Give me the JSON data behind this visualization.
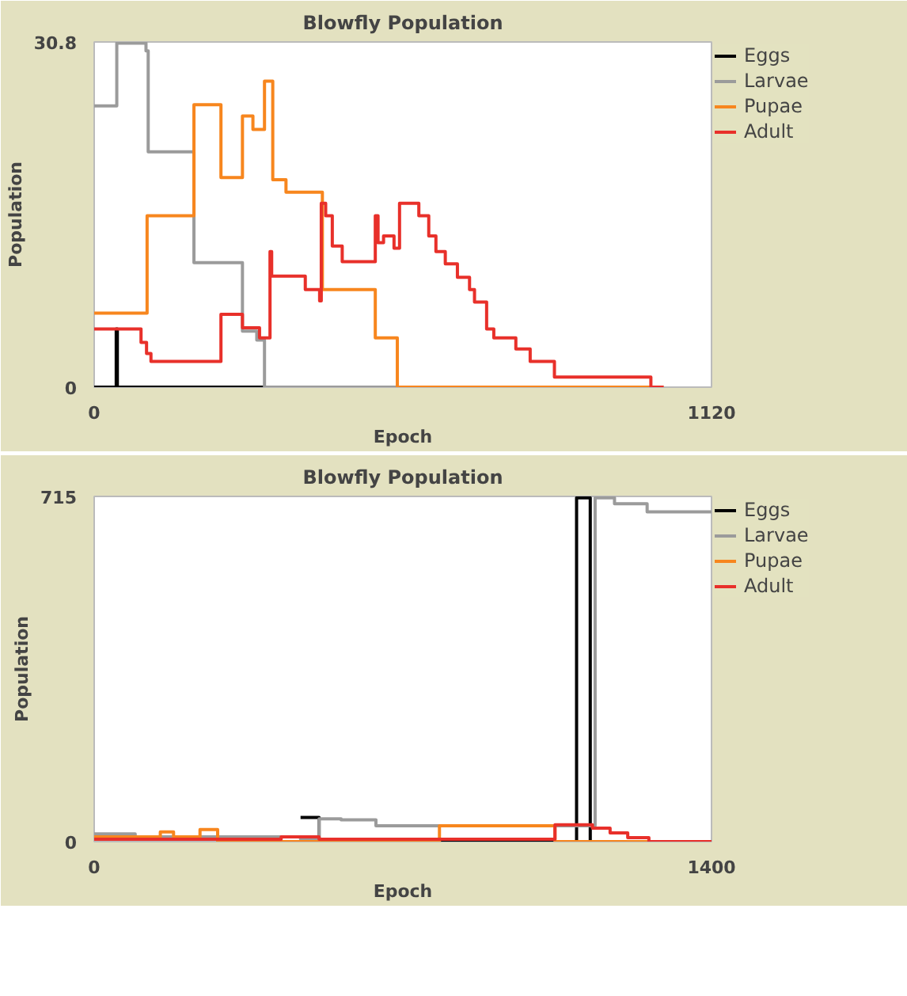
{
  "chart_data": [
    {
      "type": "step",
      "title": "Blowfly Population",
      "xlabel": "Epoch",
      "ylabel": "Population",
      "xlim": [
        0,
        1120
      ],
      "ylim": [
        0,
        30.8
      ],
      "xticks": [
        0,
        1120
      ],
      "yticks": [
        0,
        30.8
      ],
      "legend": "top right",
      "series": [
        {
          "name": "Eggs",
          "color": "#000000",
          "x": [
            0,
            40,
            42,
            309
          ],
          "values": [
            0,
            5.2,
            0,
            0
          ]
        },
        {
          "name": "Larvae",
          "color": "#9b9b9b",
          "x": [
            0,
            41,
            94,
            98,
            181,
            269,
            295,
            309,
            1033
          ],
          "values": [
            25.1,
            30.7,
            30.0,
            21.0,
            11.1,
            5.0,
            4.2,
            0,
            0
          ]
        },
        {
          "name": "Pupae",
          "color": "#f7861e",
          "x": [
            0,
            96,
            181,
            230,
            269,
            288,
            309,
            324,
            348,
            414,
            510,
            550,
            1033
          ],
          "values": [
            6.6,
            15.3,
            25.2,
            18.7,
            24.2,
            23.0,
            27.3,
            18.5,
            17.4,
            8.7,
            4.4,
            0,
            0
          ]
        },
        {
          "name": "Adult",
          "color": "#e8302a",
          "x": [
            0,
            85,
            95,
            103,
            230,
            269,
            300,
            319,
            322,
            383,
            409,
            412,
            420,
            432,
            450,
            510,
            515,
            525,
            544,
            554,
            589,
            607,
            620,
            637,
            659,
            681,
            690,
            712,
            725,
            765,
            791,
            835,
            1010,
            1033
          ],
          "values": [
            5.2,
            4.0,
            3.0,
            2.3,
            6.5,
            5.3,
            4.4,
            12.1,
            9.9,
            8.7,
            7.7,
            16.4,
            15.3,
            12.6,
            11.2,
            15.3,
            12.9,
            13.5,
            12.4,
            16.4,
            15.3,
            13.5,
            12.1,
            11.0,
            9.8,
            8.7,
            7.6,
            5.2,
            4.4,
            3.4,
            2.3,
            0.9,
            0,
            0
          ]
        }
      ]
    },
    {
      "type": "step",
      "title": "Blowfly Population",
      "xlabel": "Epoch",
      "ylabel": "Population",
      "xlim": [
        0,
        1400
      ],
      "ylim": [
        0,
        715
      ],
      "xticks": [
        0,
        1400
      ],
      "yticks": [
        0,
        715
      ],
      "legend": "top right",
      "series": [
        {
          "name": "Eggs",
          "color": "#000000",
          "x": [
            468,
            510,
            1094,
            1125,
            1400
          ],
          "values": [
            50,
            0,
            712,
            0,
            0
          ]
        },
        {
          "name": "Larvae",
          "color": "#9b9b9b",
          "x": [
            0,
            93,
            468,
            510,
            560,
            639,
            1094,
            1136,
            1180,
            1254,
            1400
          ],
          "values": [
            16,
            10,
            5,
            47,
            45,
            33,
            33,
            712,
            700,
            683,
            683
          ]
        },
        {
          "name": "Pupae",
          "color": "#f7861e",
          "x": [
            0,
            150,
            180,
            240,
            280,
            783,
            1045,
            1400
          ],
          "values": [
            10,
            20,
            10,
            25,
            0,
            33,
            0,
            0
          ]
        },
        {
          "name": "Adult",
          "color": "#e8302a",
          "x": [
            0,
            424,
            510,
            1045,
            1090,
            1130,
            1170,
            1210,
            1258,
            1400
          ],
          "values": [
            5,
            10,
            5,
            35,
            35,
            28,
            18,
            8,
            0,
            0
          ]
        }
      ]
    }
  ]
}
